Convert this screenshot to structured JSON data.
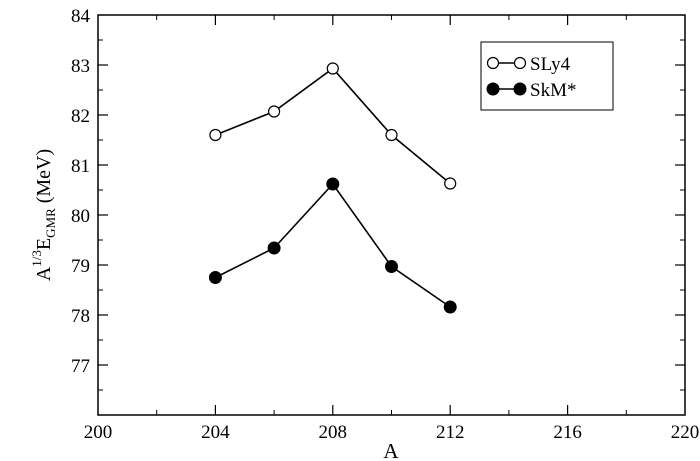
{
  "chart_data": {
    "type": "line",
    "title": "",
    "xlabel": "A",
    "ylabel": {
      "base": "A",
      "exponent": "1/3",
      "symbol": "E",
      "subscript": "GMR",
      "unit": "(MeV)"
    },
    "xlim": [
      200,
      220
    ],
    "ylim": [
      76,
      84
    ],
    "x_ticks": [
      200,
      204,
      208,
      212,
      216,
      220
    ],
    "y_ticks": [
      77,
      78,
      79,
      80,
      81,
      82,
      83,
      84
    ],
    "grid": false,
    "legend_position": "top-right",
    "series": [
      {
        "name": "SLy4",
        "marker": "open-circle",
        "color": "#000000",
        "x": [
          204,
          206,
          208,
          210,
          212
        ],
        "y": [
          81.6,
          82.07,
          82.93,
          81.6,
          80.63
        ]
      },
      {
        "name": "SkM*",
        "marker": "filled-circle",
        "color": "#000000",
        "x": [
          204,
          206,
          208,
          210,
          212
        ],
        "y": [
          78.75,
          79.34,
          80.62,
          78.97,
          78.16
        ]
      }
    ]
  }
}
